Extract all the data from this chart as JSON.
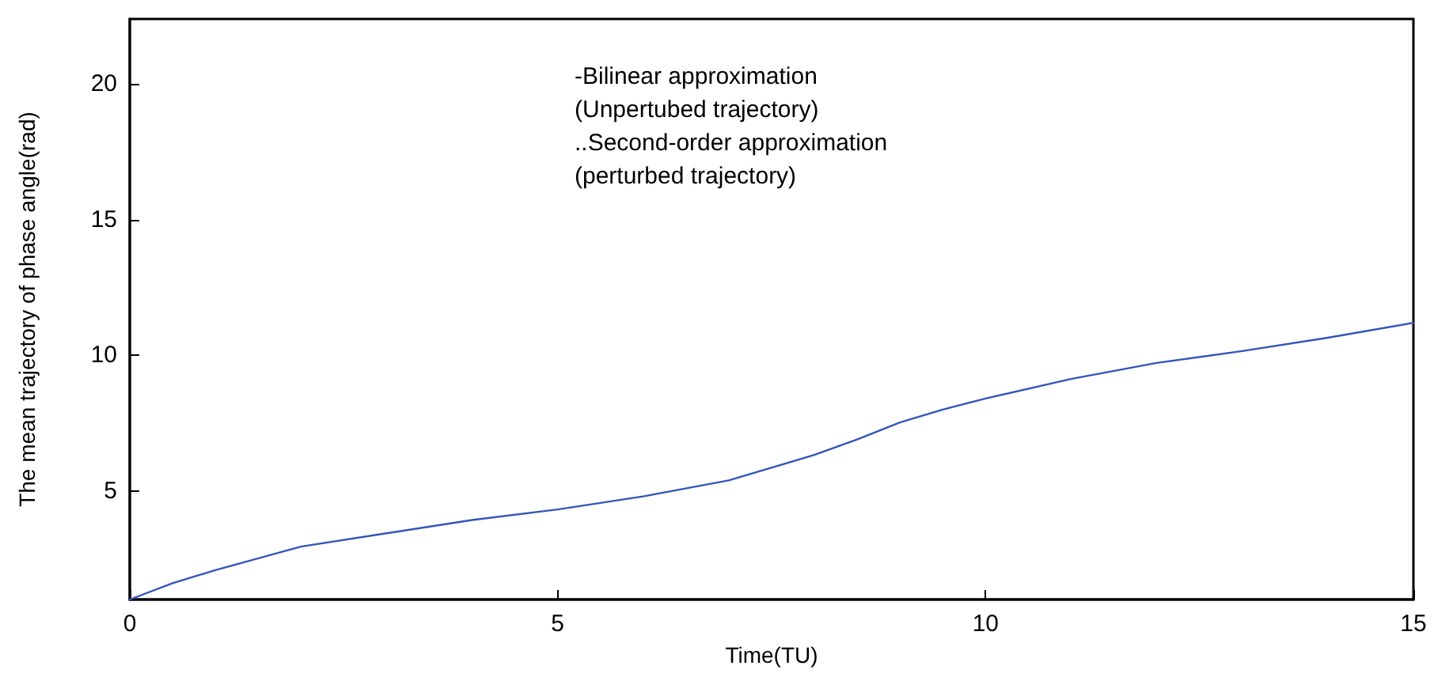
{
  "chart_data": {
    "type": "line",
    "xlabel": "Time(TU)",
    "ylabel": "The mean trajectory of phase angle(rad)",
    "annotations": [
      "-Bilinear approximation\n(Unpertubed trajectory)\n..Second-order approximation\n(perturbed trajectory)"
    ],
    "x": [
      0,
      0.5,
      1,
      2,
      3,
      4,
      5,
      6,
      7,
      8,
      8.5,
      9,
      9.5,
      10,
      11,
      12,
      13,
      14,
      15
    ],
    "series": [
      {
        "color": "#3355bb",
        "values": [
          1,
          1.6,
          2.08,
          2.95,
          3.44,
          3.93,
          4.32,
          4.8,
          5.39,
          6.33,
          6.9,
          7.53,
          8.0,
          8.41,
          9.13,
          9.72,
          10.16,
          10.65,
          11.2
        ]
      }
    ],
    "xlim": [
      0,
      15
    ],
    "xticks": [
      0,
      5,
      10,
      15
    ],
    "ylim": [
      1,
      22.4
    ],
    "yticks": [
      5,
      10,
      15,
      20
    ],
    "marker": "none",
    "line_style": "solid"
  }
}
